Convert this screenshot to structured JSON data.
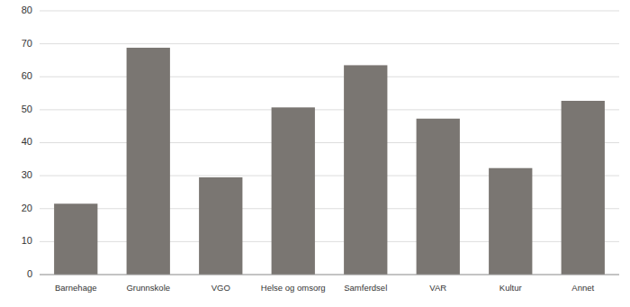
{
  "chart_data": {
    "type": "bar",
    "categories": [
      "Barnehage",
      "Grunnskole",
      "VGO",
      "Helse og omsorg",
      "Samferdsel",
      "VAR",
      "Kultur",
      "Annet"
    ],
    "values": [
      21.5,
      68.8,
      29.5,
      50.7,
      63.5,
      47.3,
      32.3,
      52.7
    ],
    "color": "#7a7672",
    "ylim": [
      0,
      80
    ],
    "yticks": [
      0,
      10,
      20,
      30,
      40,
      50,
      60,
      70,
      80
    ],
    "grid": true
  }
}
